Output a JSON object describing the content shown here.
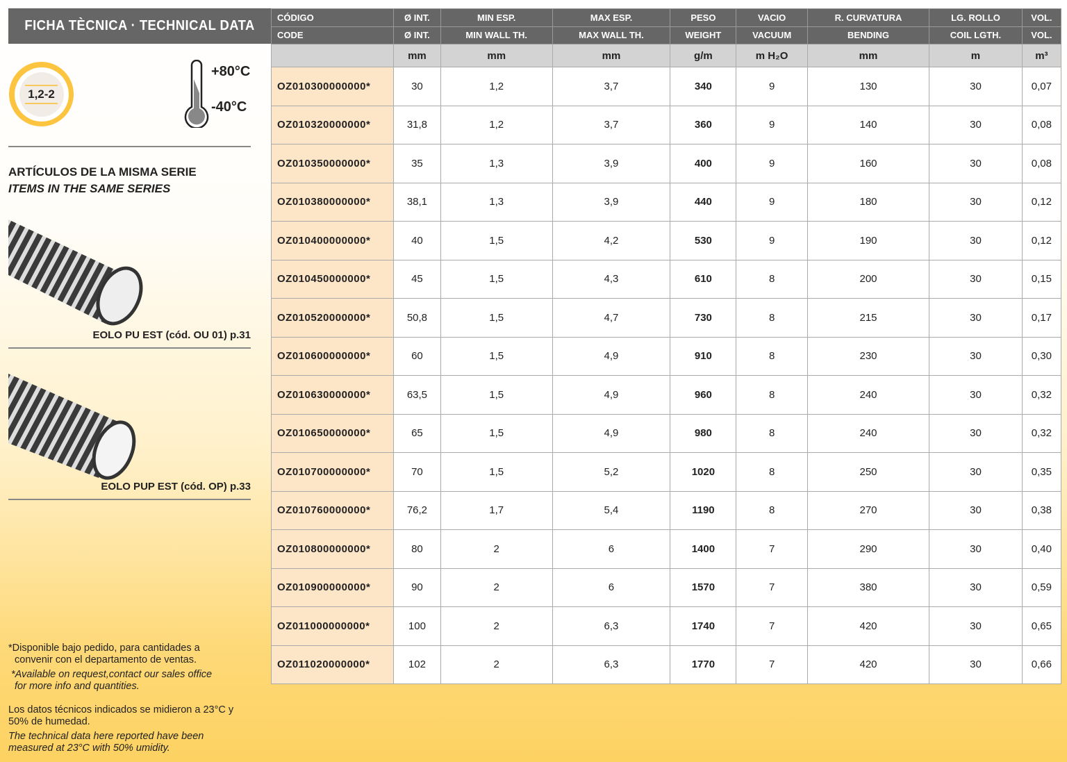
{
  "title": "FICHA TÈCNICA · TECHNICAL DATA",
  "badge": "1,2-2",
  "temp_max": "+80°C",
  "temp_min": "-40°C",
  "series_heading_es": "ARTÍCULOS DE LA MISMA SERIE",
  "series_heading_en": "ITEMS IN THE SAME SERIES",
  "related": [
    {
      "caption": "EOLO PU EST (cód. OU 01) p.31"
    },
    {
      "caption": "EOLO PUP EST (cód. OP) p.33"
    }
  ],
  "notes": {
    "avail_es_1": "*Disponible bajo pedido, para cantidades a",
    "avail_es_2": "convenir con el departamento de ventas.",
    "avail_en_1": "*Available on request,contact our sales office",
    "avail_en_2": "for more info and quantities.",
    "cond_es": "Los datos técnicos indicados se midieron a 23°C y 50% de humedad.",
    "cond_en": "The technical data here reported have been measured at 23°C with 50% umidity."
  },
  "colors": {
    "header": "#666666",
    "code_cell": "#fde5c8",
    "accent": "#fcc43f"
  },
  "table": {
    "header_es": [
      "CÓDIGO",
      "Ø INT.",
      "MIN ESP.",
      "MAX ESP.",
      "PESO",
      "VACIO",
      "R. CURVATURA",
      "LG. ROLLO",
      "VOL."
    ],
    "header_en": [
      "CODE",
      "Ø INT.",
      "MIN WALL TH.",
      "MAX WALL TH.",
      "WEIGHT",
      "VACUUM",
      "BENDING",
      "COIL LGTH.",
      "VOL."
    ],
    "units": [
      "",
      "mm",
      "mm",
      "mm",
      "g/m",
      "m H₂O",
      "mm",
      "m",
      "m³"
    ],
    "rows": [
      [
        "OZ010300000000*",
        "30",
        "1,2",
        "3,7",
        "340",
        "9",
        "130",
        "30",
        "0,07"
      ],
      [
        "OZ010320000000*",
        "31,8",
        "1,2",
        "3,7",
        "360",
        "9",
        "140",
        "30",
        "0,08"
      ],
      [
        "OZ010350000000*",
        "35",
        "1,3",
        "3,9",
        "400",
        "9",
        "160",
        "30",
        "0,08"
      ],
      [
        "OZ010380000000*",
        "38,1",
        "1,3",
        "3,9",
        "440",
        "9",
        "180",
        "30",
        "0,12"
      ],
      [
        "OZ010400000000*",
        "40",
        "1,5",
        "4,2",
        "530",
        "9",
        "190",
        "30",
        "0,12"
      ],
      [
        "OZ010450000000*",
        "45",
        "1,5",
        "4,3",
        "610",
        "8",
        "200",
        "30",
        "0,15"
      ],
      [
        "OZ010520000000*",
        "50,8",
        "1,5",
        "4,7",
        "730",
        "8",
        "215",
        "30",
        "0,17"
      ],
      [
        "OZ010600000000*",
        "60",
        "1,5",
        "4,9",
        "910",
        "8",
        "230",
        "30",
        "0,30"
      ],
      [
        "OZ010630000000*",
        "63,5",
        "1,5",
        "4,9",
        "960",
        "8",
        "240",
        "30",
        "0,32"
      ],
      [
        "OZ010650000000*",
        "65",
        "1,5",
        "4,9",
        "980",
        "8",
        "240",
        "30",
        "0,32"
      ],
      [
        "OZ010700000000*",
        "70",
        "1,5",
        "5,2",
        "1020",
        "8",
        "250",
        "30",
        "0,35"
      ],
      [
        "OZ010760000000*",
        "76,2",
        "1,7",
        "5,4",
        "1190",
        "8",
        "270",
        "30",
        "0,38"
      ],
      [
        "OZ010800000000*",
        "80",
        "2",
        "6",
        "1400",
        "7",
        "290",
        "30",
        "0,40"
      ],
      [
        "OZ010900000000*",
        "90",
        "2",
        "6",
        "1570",
        "7",
        "380",
        "30",
        "0,59"
      ],
      [
        "OZ011000000000*",
        "100",
        "2",
        "6,3",
        "1740",
        "7",
        "420",
        "30",
        "0,65"
      ],
      [
        "OZ011020000000*",
        "102",
        "2",
        "6,3",
        "1770",
        "7",
        "420",
        "30",
        "0,66"
      ]
    ]
  }
}
